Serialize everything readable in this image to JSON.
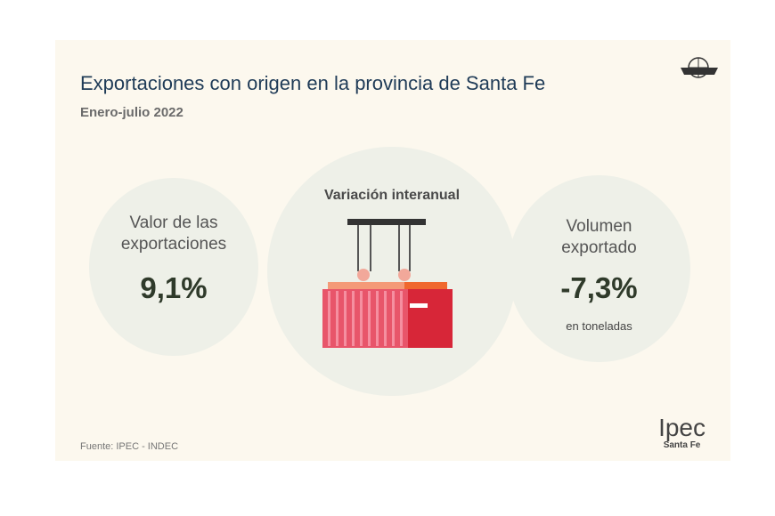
{
  "title": "Exportaciones con origen en la provincia de Santa Fe",
  "subtitle": "Enero-julio 2022",
  "center_label": "Variación interanual",
  "left": {
    "label_1": "Valor de las",
    "label_2": "exportaciones",
    "value": "9,1%"
  },
  "right": {
    "label_1": "Volumen",
    "label_2": "exportado",
    "value": "-7,3%",
    "note": "en toneladas"
  },
  "source": "Fuente: IPEC - INDEC",
  "logo": {
    "name": "Ipec",
    "region": "Santa Fe"
  },
  "colors": {
    "title": "#1f3b57",
    "container": "#e0455a"
  }
}
